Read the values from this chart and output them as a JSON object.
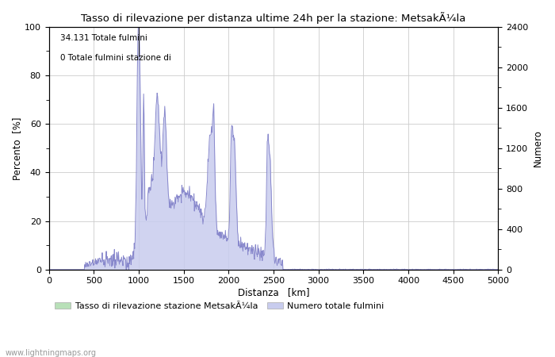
{
  "title": "Tasso di rilevazione per distanza ultime 24h per la stazione: MetsakÃ¼la",
  "xlabel": "Distanza   [km]",
  "ylabel_left": "Percento  [%]",
  "ylabel_right": "Numero",
  "annotation_line1": "34.131 Totale fulmini",
  "annotation_line2": "0 Totale fulmini stazione di",
  "legend_label1": "Tasso di rilevazione stazione MetsakÃ¼la",
  "legend_label2": "Numero totale fulmini",
  "watermark": "www.lightningmaps.org",
  "xlim": [
    0,
    5000
  ],
  "ylim_left": [
    0,
    100
  ],
  "ylim_right": [
    0,
    2400
  ],
  "color_green": "#b8e0b8",
  "color_blue": "#c8ccee",
  "color_line_blue": "#8888cc",
  "color_line_green": "#88cc88",
  "bg_color": "#ffffff"
}
